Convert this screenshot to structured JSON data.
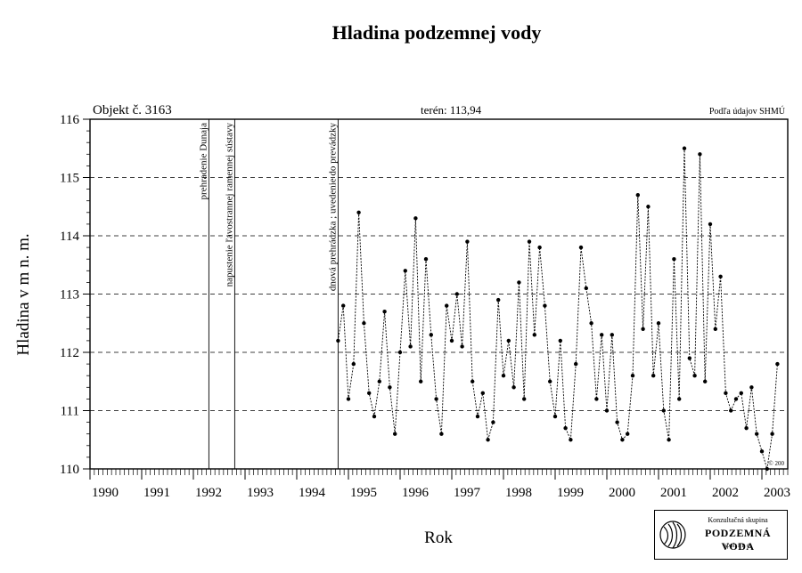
{
  "chart_data": {
    "type": "scatter",
    "title": "Hladina podzemnej vody",
    "ylabel": "Hladina v m n. m.",
    "xlabel": "Rok",
    "object_label": "Objekt č. 3163",
    "terrain_label": "terén: 113,94",
    "source_label": "Podľa údajov SHMÚ",
    "copyright_label": "© 200",
    "xlim": [
      1990,
      2003.5
    ],
    "ylim": [
      110,
      116
    ],
    "x_ticks": [
      {
        "value": 1990,
        "label": "1990"
      },
      {
        "value": 1991,
        "label": "1991"
      },
      {
        "value": 1992,
        "label": "1992"
      },
      {
        "value": 1993,
        "label": "1993"
      },
      {
        "value": 1994,
        "label": "1994"
      },
      {
        "value": 1995,
        "label": "1995"
      },
      {
        "value": 1996,
        "label": "1996"
      },
      {
        "value": 1997,
        "label": "1997"
      },
      {
        "value": 1998,
        "label": "1998"
      },
      {
        "value": 1999,
        "label": "1999"
      },
      {
        "value": 2000,
        "label": "2000"
      },
      {
        "value": 2001,
        "label": "2001"
      },
      {
        "value": 2002,
        "label": "2002"
      },
      {
        "value": 2003,
        "label": "2003"
      }
    ],
    "y_ticks": [
      110,
      111,
      112,
      113,
      114,
      115,
      116
    ],
    "y_tick_labels": [
      "110",
      "111",
      "112",
      "113",
      "114",
      "115",
      "116"
    ],
    "grid": "horizontal dashed",
    "events": [
      {
        "x": 1992.3,
        "label": "prehradenie Dunaja"
      },
      {
        "x": 1992.8,
        "label": "napustenie ľavostrannej ramennej sústavy"
      },
      {
        "x": 1994.8,
        "label": "dnová prehrádzka ; uvedenie do prevádzky"
      }
    ],
    "series": [
      {
        "values": [
          [
            1994.8,
            112.2
          ],
          [
            1994.9,
            112.8
          ],
          [
            1995.0,
            111.2
          ],
          [
            1995.1,
            111.8
          ],
          [
            1995.2,
            114.4
          ],
          [
            1995.3,
            112.5
          ],
          [
            1995.4,
            111.3
          ],
          [
            1995.5,
            110.9
          ],
          [
            1995.6,
            111.5
          ],
          [
            1995.7,
            112.7
          ],
          [
            1995.8,
            111.4
          ],
          [
            1995.9,
            110.6
          ],
          [
            1996.0,
            112.0
          ],
          [
            1996.1,
            113.4
          ],
          [
            1996.2,
            112.1
          ],
          [
            1996.3,
            114.3
          ],
          [
            1996.4,
            111.5
          ],
          [
            1996.5,
            113.6
          ],
          [
            1996.6,
            112.3
          ],
          [
            1996.7,
            111.2
          ],
          [
            1996.8,
            110.6
          ],
          [
            1996.9,
            112.8
          ],
          [
            1997.0,
            112.2
          ],
          [
            1997.1,
            113.0
          ],
          [
            1997.2,
            112.1
          ],
          [
            1997.3,
            113.9
          ],
          [
            1997.4,
            111.5
          ],
          [
            1997.5,
            110.9
          ],
          [
            1997.6,
            111.3
          ],
          [
            1997.7,
            110.5
          ],
          [
            1997.8,
            110.8
          ],
          [
            1997.9,
            112.9
          ],
          [
            1998.0,
            111.6
          ],
          [
            1998.1,
            112.2
          ],
          [
            1998.2,
            111.4
          ],
          [
            1998.3,
            113.2
          ],
          [
            1998.4,
            111.2
          ],
          [
            1998.5,
            113.9
          ],
          [
            1998.6,
            112.3
          ],
          [
            1998.7,
            113.8
          ],
          [
            1998.8,
            112.8
          ],
          [
            1998.9,
            111.5
          ],
          [
            1999.0,
            110.9
          ],
          [
            1999.1,
            112.2
          ],
          [
            1999.2,
            110.7
          ],
          [
            1999.3,
            110.5
          ],
          [
            1999.4,
            111.8
          ],
          [
            1999.5,
            113.8
          ],
          [
            1999.6,
            113.1
          ],
          [
            1999.7,
            112.5
          ],
          [
            1999.8,
            111.2
          ],
          [
            1999.9,
            112.3
          ],
          [
            2000.0,
            111.0
          ],
          [
            2000.1,
            112.3
          ],
          [
            2000.2,
            110.8
          ],
          [
            2000.3,
            110.5
          ],
          [
            2000.4,
            110.6
          ],
          [
            2000.5,
            111.6
          ],
          [
            2000.6,
            114.7
          ],
          [
            2000.7,
            112.4
          ],
          [
            2000.8,
            114.5
          ],
          [
            2000.9,
            111.6
          ],
          [
            2001.0,
            112.5
          ],
          [
            2001.1,
            111.0
          ],
          [
            2001.2,
            110.5
          ],
          [
            2001.3,
            113.6
          ],
          [
            2001.4,
            111.2
          ],
          [
            2001.5,
            115.5
          ],
          [
            2001.6,
            111.9
          ],
          [
            2001.7,
            111.6
          ],
          [
            2001.8,
            115.4
          ],
          [
            2001.9,
            111.5
          ],
          [
            2002.0,
            114.2
          ],
          [
            2002.1,
            112.4
          ],
          [
            2002.2,
            113.3
          ],
          [
            2002.3,
            111.3
          ],
          [
            2002.4,
            111.0
          ],
          [
            2002.5,
            111.2
          ],
          [
            2002.6,
            111.3
          ],
          [
            2002.7,
            110.7
          ],
          [
            2002.8,
            111.4
          ],
          [
            2002.9,
            110.6
          ],
          [
            2003.0,
            110.3
          ],
          [
            2003.1,
            110.0
          ],
          [
            2003.2,
            110.6
          ],
          [
            2003.3,
            111.8
          ]
        ]
      }
    ]
  },
  "logo": {
    "line1": "Konzultačná skupina",
    "line2": "PODZEMNÁ VODA",
    "line3": "spol. s r. o."
  }
}
